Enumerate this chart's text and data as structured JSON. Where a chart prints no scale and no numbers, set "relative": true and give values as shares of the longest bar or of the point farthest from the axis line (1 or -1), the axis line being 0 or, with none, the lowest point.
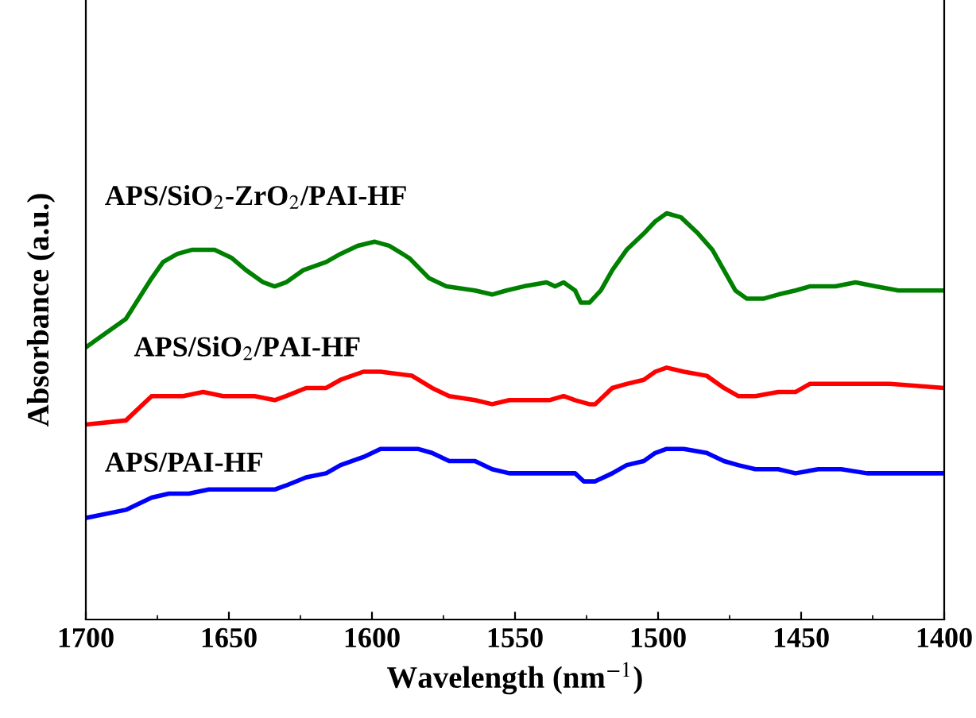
{
  "chart_data": {
    "type": "line",
    "relative": true,
    "xlabel": "Wavelength (nm$^{−1}$)",
    "ylabel": "Absorbance (a.u.)",
    "xlim": [
      1700,
      1400
    ],
    "xticks": [
      1700,
      1650,
      1600,
      1550,
      1500,
      1450,
      1400
    ],
    "grid": false,
    "legend": false,
    "marker": "none",
    "line_style": "solid",
    "series": [
      {
        "name": "APS/SiO$_{2}$-ZrO$_{2}$/PAI-HF",
        "color": "#008000",
        "x": [
          1700,
          1696,
          1686,
          1677,
          1673,
          1668,
          1663,
          1659,
          1655,
          1649,
          1644,
          1638,
          1634,
          1630,
          1624,
          1616,
          1611,
          1605,
          1599,
          1594,
          1587,
          1580,
          1574,
          1564,
          1558,
          1553,
          1547,
          1539,
          1536,
          1533,
          1529,
          1527,
          1524,
          1520,
          1516,
          1511,
          1505,
          1501,
          1497,
          1492,
          1486,
          1481,
          1477,
          1473,
          1469,
          1463,
          1458,
          1452,
          1447,
          1438,
          1431,
          1424,
          1416,
          1408,
          1400
        ],
        "values": [
          0.67,
          0.69,
          0.74,
          0.84,
          0.88,
          0.9,
          0.91,
          0.91,
          0.91,
          0.89,
          0.86,
          0.83,
          0.82,
          0.83,
          0.86,
          0.88,
          0.9,
          0.92,
          0.93,
          0.92,
          0.89,
          0.84,
          0.82,
          0.81,
          0.8,
          0.81,
          0.82,
          0.83,
          0.82,
          0.83,
          0.81,
          0.78,
          0.78,
          0.81,
          0.86,
          0.91,
          0.95,
          0.98,
          1,
          0.99,
          0.95,
          0.91,
          0.86,
          0.81,
          0.79,
          0.79,
          0.8,
          0.81,
          0.82,
          0.82,
          0.83,
          0.82,
          0.81,
          0.81,
          0.81
        ]
      },
      {
        "name": "APS/SiO$_{2}$/PAI-HF",
        "color": "#ff0000",
        "x": [
          1700,
          1686,
          1677,
          1673,
          1666,
          1659,
          1652,
          1641,
          1634,
          1630,
          1623,
          1616,
          1611,
          1603,
          1597,
          1586,
          1579,
          1573,
          1564,
          1558,
          1552,
          1544,
          1538,
          1533,
          1529,
          1524,
          1522,
          1516,
          1511,
          1505,
          1501,
          1497,
          1491,
          1483,
          1477,
          1472,
          1466,
          1458,
          1452,
          1447,
          1438,
          1430,
          1419,
          1400
        ],
        "values": [
          0.48,
          0.49,
          0.55,
          0.55,
          0.55,
          0.56,
          0.55,
          0.55,
          0.54,
          0.55,
          0.57,
          0.57,
          0.59,
          0.61,
          0.61,
          0.6,
          0.57,
          0.55,
          0.54,
          0.53,
          0.54,
          0.54,
          0.54,
          0.55,
          0.54,
          0.53,
          0.53,
          0.57,
          0.58,
          0.59,
          0.61,
          0.62,
          0.61,
          0.6,
          0.57,
          0.55,
          0.55,
          0.56,
          0.56,
          0.58,
          0.58,
          0.58,
          0.58,
          0.57
        ]
      },
      {
        "name": "APS/PAI-HF",
        "color": "#0000ff",
        "x": [
          1700,
          1686,
          1677,
          1671,
          1664,
          1657,
          1646,
          1634,
          1630,
          1623,
          1616,
          1611,
          1603,
          1597,
          1591,
          1584,
          1579,
          1573,
          1564,
          1558,
          1552,
          1544,
          1538,
          1533,
          1529,
          1526,
          1522,
          1516,
          1511,
          1505,
          1501,
          1497,
          1491,
          1483,
          1477,
          1472,
          1466,
          1458,
          1452,
          1444,
          1436,
          1427,
          1419,
          1400
        ],
        "values": [
          0.25,
          0.27,
          0.3,
          0.31,
          0.31,
          0.32,
          0.32,
          0.32,
          0.33,
          0.35,
          0.36,
          0.38,
          0.4,
          0.42,
          0.42,
          0.42,
          0.41,
          0.39,
          0.39,
          0.37,
          0.36,
          0.36,
          0.36,
          0.36,
          0.36,
          0.34,
          0.34,
          0.36,
          0.38,
          0.39,
          0.41,
          0.42,
          0.42,
          0.41,
          0.39,
          0.38,
          0.37,
          0.37,
          0.36,
          0.37,
          0.37,
          0.36,
          0.36,
          0.36
        ]
      }
    ]
  }
}
